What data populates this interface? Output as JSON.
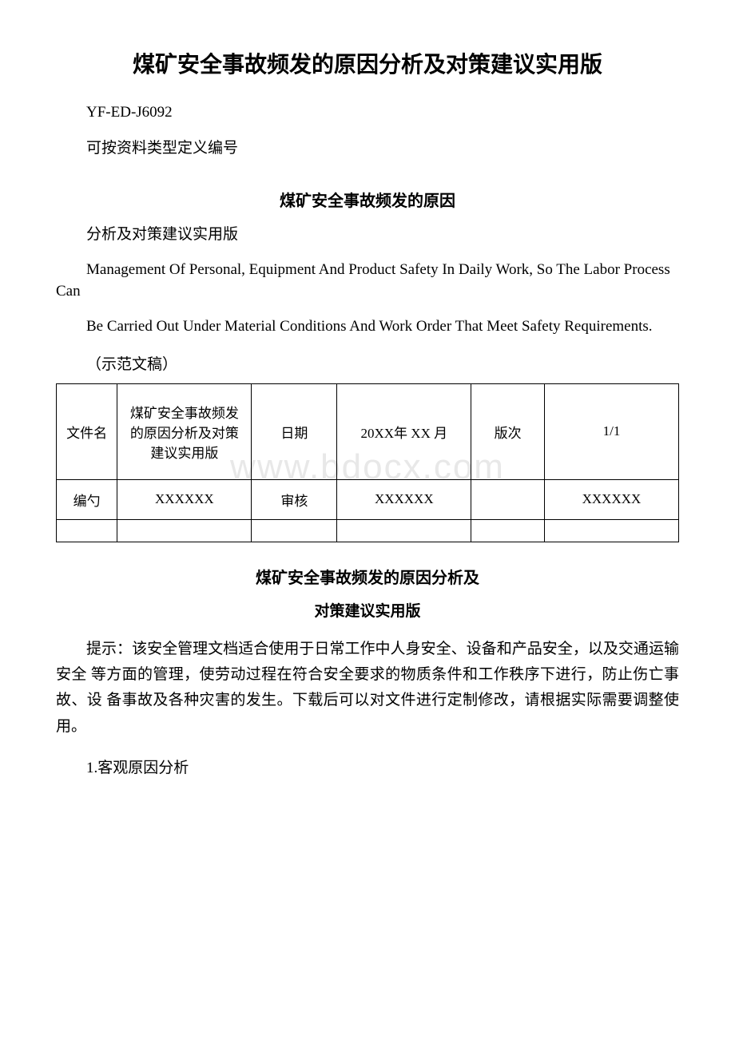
{
  "title_main": "煤矿安全事故频发的原因分析及对策建议实用版",
  "doc_code": "YF-ED-J6092",
  "doc_category": "可按资料类型定义编号",
  "subtitle": "煤矿安全事故频发的原因",
  "subtitle_sub": "分析及对策建议实用版",
  "english_para1": "Management Of Personal, Equipment And Product Safety In Daily Work, So The Labor Process Can",
  "english_para2": "Be Carried Out Under Material Conditions And Work Order That Meet Safety Requirements.",
  "example_label": "（示范文稿）",
  "table": {
    "row1": {
      "label1": "文件名",
      "content1": "煤矿安全事故频发的原因分析及对策 建议实用版",
      "label2": "日期",
      "content2": "20XX年 XX 月",
      "label3": "版次",
      "content3": "1/1"
    },
    "row2": {
      "label1": "编勺",
      "content1": "XXXXXX",
      "label2": "审核",
      "content2": "XXXXXX",
      "label3": "",
      "content3": "XXXXXX"
    }
  },
  "section_title": "煤矿安全事故频发的原因分析及",
  "section_subtitle": "对策建议实用版",
  "body_text": "提示：该安全管理文档适合使用于日常工作中人身安全、设备和产品安全，以及交通运输安全 等方面的管理，使劳动过程在符合安全要求的物质条件和工作秩序下进行，防止伤亡事故、设 备事故及各种灾害的发生。下载后可以对文件进行定制修改，请根据实际需要调整使用。",
  "numbered_item": "1.客观原因分析",
  "watermark": "www.bdocx.com"
}
